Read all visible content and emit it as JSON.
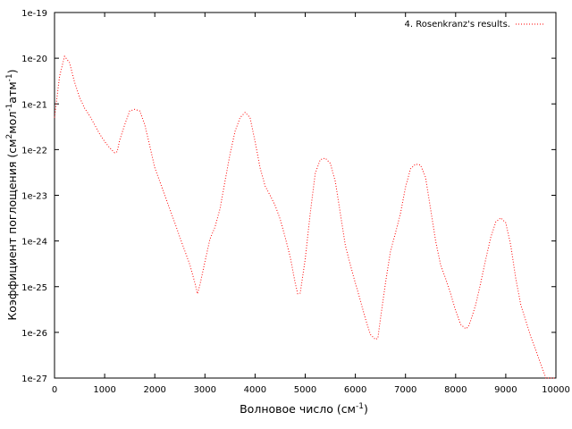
{
  "chart_data": {
    "type": "line",
    "xlabel": "Волновое число (см",
    "xlabel_sup": "-1",
    "xlabel_end": ")",
    "ylabel_parts": [
      "Коэффициент поглощения (см",
      "2",
      "мол",
      "-1",
      "атм",
      "-1",
      ")"
    ],
    "xlim": [
      0,
      10000
    ],
    "ylim": [
      1e-27,
      1e-19
    ],
    "yscale": "log",
    "grid": false,
    "legend_position": "top-right",
    "x_ticks": [
      "0",
      "1000",
      "2000",
      "3000",
      "4000",
      "5000",
      "6000",
      "7000",
      "8000",
      "9000",
      "10000"
    ],
    "y_ticks": [
      "1e-27",
      "1e-26",
      "1e-25",
      "1e-24",
      "1e-23",
      "1e-22",
      "1e-21",
      "1e-20",
      "1e-19"
    ],
    "series": [
      {
        "name": "4. Rosenkranz's results.",
        "color": "#ff0000",
        "style": "dotted",
        "x": [
          0,
          100,
          200,
          300,
          400,
          500,
          600,
          700,
          800,
          900,
          1000,
          1100,
          1200,
          1250,
          1300,
          1400,
          1500,
          1600,
          1700,
          1800,
          1900,
          2000,
          2100,
          2200,
          2300,
          2400,
          2500,
          2600,
          2700,
          2800,
          2850,
          2900,
          3000,
          3100,
          3200,
          3300,
          3400,
          3500,
          3600,
          3700,
          3800,
          3900,
          4000,
          4100,
          4200,
          4300,
          4400,
          4500,
          4600,
          4700,
          4800,
          4850,
          4900,
          5000,
          5100,
          5200,
          5300,
          5400,
          5500,
          5600,
          5700,
          5800,
          5900,
          6000,
          6100,
          6200,
          6300,
          6400,
          6450,
          6500,
          6600,
          6700,
          6800,
          6900,
          7000,
          7100,
          7200,
          7300,
          7400,
          7500,
          7600,
          7700,
          7800,
          7900,
          8000,
          8100,
          8200,
          8250,
          8300,
          8400,
          8500,
          8600,
          8700,
          8800,
          8900,
          9000,
          9100,
          9200,
          9300,
          9400,
          9500,
          9600,
          9700,
          9800,
          9900,
          10000
        ],
        "y": [
          5e-22,
          4e-21,
          1.1e-20,
          8e-21,
          3e-21,
          1.4e-21,
          8e-22,
          5.5e-22,
          3.5e-22,
          2.2e-22,
          1.5e-22,
          1.1e-22,
          8.5e-23,
          9e-23,
          1.6e-22,
          3.5e-22,
          7e-22,
          7.6e-22,
          7e-22,
          3.5e-22,
          1.2e-22,
          4e-23,
          2e-23,
          1e-23,
          5e-24,
          2.5e-24,
          1.2e-24,
          6e-25,
          3e-25,
          1.2e-25,
          7e-26,
          1.1e-25,
          3.5e-25,
          1.1e-24,
          2e-24,
          5e-24,
          2e-23,
          8e-23,
          2.5e-22,
          5e-22,
          6.5e-22,
          5e-22,
          1.5e-22,
          4e-23,
          1.6e-23,
          1e-23,
          6e-24,
          3e-24,
          1.2e-24,
          4.5e-25,
          1.2e-25,
          7e-26,
          7.2e-26,
          4e-25,
          4e-24,
          3e-23,
          6e-23,
          6.5e-23,
          5e-23,
          2e-23,
          4e-24,
          8e-25,
          3e-25,
          1.2e-25,
          5e-26,
          2e-26,
          9e-27,
          7e-27,
          7.5e-27,
          2e-26,
          1.2e-25,
          6e-25,
          1.5e-24,
          4e-24,
          1.5e-23,
          3.8e-23,
          4.8e-23,
          4.6e-23,
          2.5e-23,
          5e-24,
          1e-24,
          3e-25,
          1.5e-25,
          7e-26,
          3e-26,
          1.5e-26,
          1.2e-26,
          1.3e-26,
          1.8e-26,
          4e-26,
          1.2e-25,
          4e-25,
          1.2e-24,
          2.6e-24,
          3.2e-24,
          2.5e-24,
          8e-25,
          1.5e-25,
          4e-26,
          1.8e-26,
          8e-27,
          4e-27,
          2e-27,
          1e-27,
          6e-28,
          4e-28
        ]
      }
    ]
  }
}
